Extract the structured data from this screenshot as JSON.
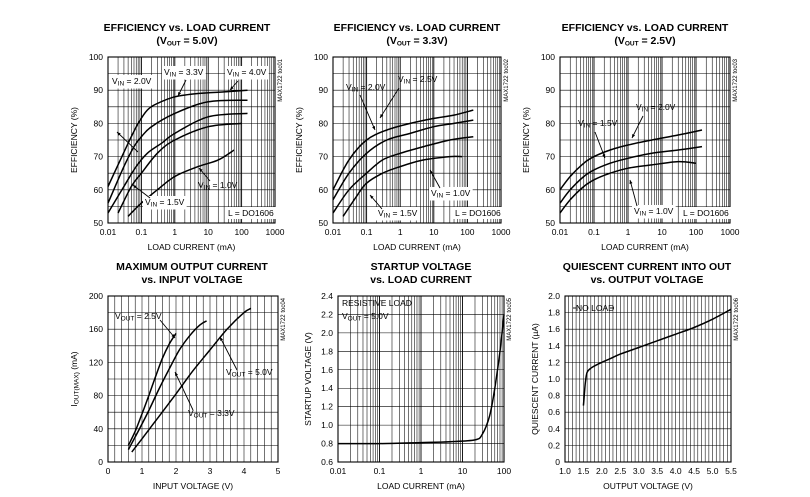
{
  "chart_data": [
    {
      "type": "line",
      "title": "EFFICIENCY vs. LOAD CURRENT",
      "subtitle": "(VOUT = 5.0V)",
      "subtitle_parts": [
        "(V",
        "OUT",
        " = 5.0V)"
      ],
      "xlabel": "LOAD CURRENT (mA)",
      "ylabel": "EFFICIENCY (%)",
      "side_code": "MAX1722 toc01",
      "xscale": "log",
      "xlim": [
        0.01,
        1000
      ],
      "ylim": [
        50,
        100
      ],
      "xticks": [
        0.01,
        0.1,
        1,
        10,
        100,
        1000
      ],
      "xtick_labels": [
        "0.01",
        "0.1",
        "1",
        "10",
        "100",
        "1000"
      ],
      "yticks": [
        50,
        60,
        70,
        80,
        90,
        100
      ],
      "ytick_labels": [
        "50",
        "60",
        "70",
        "80",
        "90",
        "100"
      ],
      "grid": true,
      "series": [
        {
          "x": [
            0.01,
            0.04,
            0.08,
            0.15,
            0.3,
            1,
            5,
            30,
            150
          ],
          "y": [
            61,
            74,
            80,
            84,
            86,
            88,
            89,
            89.5,
            90
          ]
        },
        {
          "x": [
            0.01,
            0.03,
            0.06,
            0.1,
            0.2,
            1,
            10,
            150
          ],
          "y": [
            56,
            67,
            73,
            76,
            79,
            83,
            86.5,
            87
          ]
        },
        {
          "x": [
            0.01,
            0.03,
            0.07,
            0.15,
            0.4,
            1,
            10,
            150
          ],
          "y": [
            53,
            61,
            67,
            71,
            74,
            77,
            82,
            83
          ]
        },
        {
          "x": [
            0.02,
            0.05,
            0.1,
            0.3,
            1,
            10,
            100
          ],
          "y": [
            53,
            61,
            65,
            71,
            75,
            79,
            80
          ]
        },
        {
          "x": [
            0.04,
            0.1,
            0.3,
            1,
            5,
            20,
            60
          ],
          "y": [
            52,
            56,
            60,
            64,
            67,
            69,
            72
          ]
        }
      ],
      "annotations": [
        {
          "parts": [
            "V",
            "IN",
            " = 2.0V"
          ],
          "box": true
        },
        {
          "parts": [
            "V",
            "IN",
            " = 3.3V"
          ],
          "box": true
        },
        {
          "parts": [
            "V",
            "IN",
            " = 4.0V"
          ],
          "box": true
        },
        {
          "parts": [
            "V",
            "IN",
            " = 1.0V"
          ],
          "box": false
        },
        {
          "parts": [
            "V",
            "IN",
            " = 1.5V"
          ],
          "box": true
        },
        {
          "parts": [
            "L = DO1606"
          ],
          "box": true
        }
      ]
    },
    {
      "type": "line",
      "title": "EFFICIENCY vs. LOAD CURRENT",
      "subtitle": "(VOUT = 3.3V)",
      "subtitle_parts": [
        "(V",
        "OUT",
        " = 3.3V)"
      ],
      "xlabel": "LOAD CURRENT (mA)",
      "ylabel": "EFFICIENCY (%)",
      "side_code": "MAX1722 toc02",
      "xscale": "log",
      "xlim": [
        0.01,
        1000
      ],
      "ylim": [
        50,
        100
      ],
      "xticks": [
        0.01,
        0.1,
        1,
        10,
        100,
        1000
      ],
      "xtick_labels": [
        "0.01",
        "0.1",
        "1",
        "10",
        "100",
        "1000"
      ],
      "yticks": [
        50,
        60,
        70,
        80,
        90,
        100
      ],
      "ytick_labels": [
        "50",
        "60",
        "70",
        "80",
        "90",
        "100"
      ],
      "grid": true,
      "series": [
        {
          "x": [
            0.01,
            0.03,
            0.1,
            0.4,
            2,
            10,
            40,
            150
          ],
          "y": [
            60,
            69,
            75,
            78,
            80,
            81.5,
            82.5,
            84
          ]
        },
        {
          "x": [
            0.01,
            0.03,
            0.1,
            0.4,
            2,
            10,
            40,
            150
          ],
          "y": [
            57,
            65,
            71,
            75,
            77,
            79,
            80,
            81
          ]
        },
        {
          "x": [
            0.01,
            0.03,
            0.1,
            0.3,
            1,
            5,
            30,
            150
          ],
          "y": [
            53,
            60,
            65,
            69,
            71,
            73,
            75,
            76
          ]
        },
        {
          "x": [
            0.02,
            0.05,
            0.1,
            0.3,
            1,
            5,
            30,
            70
          ],
          "y": [
            52,
            58,
            62,
            65,
            67,
            69,
            70,
            70
          ]
        }
      ],
      "annotations": [
        {
          "parts": [
            "V",
            "IN",
            " = 2.0V"
          ],
          "box": false
        },
        {
          "parts": [
            "V",
            "IN",
            " = 2.5V"
          ],
          "box": false
        },
        {
          "parts": [
            "V",
            "IN",
            " = 1.0V"
          ],
          "box": true
        },
        {
          "parts": [
            "V",
            "IN",
            " = 1.5V"
          ],
          "box": true
        },
        {
          "parts": [
            "L = DO1606"
          ],
          "box": true
        }
      ]
    },
    {
      "type": "line",
      "title": "EFFICIENCY vs. LOAD CURRENT",
      "subtitle": "(VOUT = 2.5V)",
      "subtitle_parts": [
        "(V",
        "OUT",
        " = 2.5V)"
      ],
      "xlabel": "LOAD CURRENT (mA)",
      "ylabel": "EFFICIENCY (%)",
      "side_code": "MAX1722 toc03",
      "xscale": "log",
      "xlim": [
        0.01,
        1000
      ],
      "ylim": [
        50,
        100
      ],
      "xticks": [
        0.01,
        0.1,
        1,
        10,
        100,
        1000
      ],
      "xtick_labels": [
        "0.01",
        "0.1",
        "1",
        "10",
        "100",
        "1000"
      ],
      "yticks": [
        50,
        60,
        70,
        80,
        90,
        100
      ],
      "ytick_labels": [
        "50",
        "60",
        "70",
        "80",
        "90",
        "100"
      ],
      "grid": true,
      "series": [
        {
          "x": [
            0.01,
            0.02,
            0.05,
            0.1,
            0.3,
            1,
            5,
            30,
            150
          ],
          "y": [
            60,
            64,
            68,
            70,
            72,
            73.5,
            75,
            76.5,
            78
          ]
        },
        {
          "x": [
            0.01,
            0.02,
            0.05,
            0.1,
            0.3,
            1,
            5,
            30,
            150
          ],
          "y": [
            56,
            60,
            64,
            66,
            68,
            69.5,
            71,
            72,
            73
          ]
        },
        {
          "x": [
            0.01,
            0.02,
            0.05,
            0.1,
            0.3,
            1,
            5,
            30,
            100
          ],
          "y": [
            53,
            57,
            61,
            63,
            65,
            66.5,
            67.5,
            68.5,
            68
          ]
        }
      ],
      "annotations": [
        {
          "parts": [
            "V",
            "IN",
            " = 2.0V"
          ],
          "box": false
        },
        {
          "parts": [
            "V",
            "IN",
            " = 1.5V"
          ],
          "box": false
        },
        {
          "parts": [
            "V",
            "IN",
            " = 1.0V"
          ],
          "box": true
        },
        {
          "parts": [
            "L = DO1606"
          ],
          "box": true
        }
      ]
    },
    {
      "type": "line",
      "title": "MAXIMUM OUTPUT CURRENT",
      "subtitle": "vs. INPUT VOLTAGE",
      "subtitle_parts": [
        "vs. INPUT VOLTAGE"
      ],
      "xlabel": "INPUT VOLTAGE (V)",
      "ylabel": "IOUT(MAX) (mA)",
      "ylabel_parts": [
        "I",
        "OUT(MAX)",
        " (mA)"
      ],
      "side_code": "MAX1722 toc04",
      "xscale": "linear",
      "xlim": [
        0,
        5
      ],
      "ylim": [
        0,
        200
      ],
      "xticks": [
        0,
        1,
        2,
        3,
        4,
        5
      ],
      "xtick_labels": [
        "0",
        "1",
        "2",
        "3",
        "4",
        "5"
      ],
      "yticks": [
        0,
        40,
        80,
        120,
        160,
        200
      ],
      "ytick_labels": [
        "0",
        "40",
        "80",
        "120",
        "160",
        "200"
      ],
      "grid": true,
      "series": [
        {
          "x": [
            0.6,
            0.8,
            1.0,
            1.2,
            1.4,
            1.6,
            1.8,
            2.0
          ],
          "y": [
            20,
            37,
            58,
            80,
            103,
            125,
            142,
            155
          ]
        },
        {
          "x": [
            0.6,
            0.9,
            1.2,
            1.5,
            1.8,
            2.1,
            2.4,
            2.7,
            2.9
          ],
          "y": [
            15,
            38,
            62,
            88,
            112,
            135,
            152,
            165,
            170
          ]
        },
        {
          "x": [
            0.7,
            1.0,
            1.5,
            2.0,
            2.5,
            3.0,
            3.5,
            4.0,
            4.2
          ],
          "y": [
            12,
            28,
            55,
            82,
            110,
            135,
            160,
            180,
            185
          ]
        }
      ],
      "annotations": [
        {
          "parts": [
            "V",
            "OUT",
            " = 2.5V"
          ],
          "box": false
        },
        {
          "parts": [
            "V",
            "OUT",
            " = 5.0V"
          ],
          "box": false
        },
        {
          "parts": [
            "V",
            "OUT",
            " = 3.3V"
          ],
          "box": false
        }
      ]
    },
    {
      "type": "line",
      "title": "STARTUP VOLTAGE",
      "subtitle": "vs. LOAD CURRENT",
      "subtitle_parts": [
        "vs. LOAD CURRENT"
      ],
      "xlabel": "LOAD CURRENT (mA)",
      "ylabel": "STARTUP VOLTAGE (V)",
      "side_code": "MAX1722 toc05",
      "xscale": "log",
      "xlim": [
        0.01,
        100
      ],
      "ylim": [
        0.6,
        2.4
      ],
      "xticks": [
        0.01,
        0.1,
        1,
        10,
        100
      ],
      "xtick_labels": [
        "0.01",
        "0.1",
        "1",
        "10",
        "100"
      ],
      "yticks": [
        0.6,
        0.8,
        1.0,
        1.2,
        1.4,
        1.6,
        1.8,
        2.0,
        2.2,
        2.4
      ],
      "ytick_labels": [
        "0.6",
        "0.8",
        "1.0",
        "1.2",
        "1.4",
        "1.6",
        "1.8",
        "2.0",
        "2.2",
        "2.4"
      ],
      "grid": true,
      "series": [
        {
          "x": [
            0.01,
            0.1,
            1,
            5,
            20,
            30,
            45,
            60,
            80,
            100
          ],
          "y": [
            0.8,
            0.8,
            0.81,
            0.82,
            0.84,
            0.9,
            1.1,
            1.4,
            1.8,
            2.2
          ]
        }
      ],
      "annotations": [
        {
          "parts": [
            "RESISTIVE LOAD"
          ],
          "box": false
        },
        {
          "parts": [
            "V",
            "OUT",
            " = 5.0V"
          ],
          "box": false
        }
      ]
    },
    {
      "type": "line",
      "title": "QUIESCENT CURRENT INTO OUT",
      "subtitle": "vs. OUTPUT VOLTAGE",
      "subtitle_parts": [
        "vs. OUTPUT VOLTAGE"
      ],
      "xlabel": "OUTPUT VOLTAGE (V)",
      "ylabel": "QUIESCENT CURRENT (µA)",
      "side_code": "MAX1722 toc06",
      "xscale": "linear",
      "xlim": [
        1.0,
        5.5
      ],
      "ylim": [
        0,
        2.0
      ],
      "xticks": [
        1.0,
        1.5,
        2.0,
        2.5,
        3.0,
        3.5,
        4.0,
        4.5,
        5.0,
        5.5
      ],
      "xtick_labels": [
        "1.0",
        "1.5",
        "2.0",
        "2.5",
        "3.0",
        "3.5",
        "4.0",
        "4.5",
        "5.0",
        "5.5"
      ],
      "yticks": [
        0,
        0.2,
        0.4,
        0.6,
        0.8,
        1.0,
        1.2,
        1.4,
        1.6,
        1.8,
        2.0
      ],
      "ytick_labels": [
        "0",
        "0.2",
        "0.4",
        "0.6",
        "0.8",
        "1.0",
        "1.2",
        "1.4",
        "1.6",
        "1.8",
        "2.0"
      ],
      "grid": true,
      "series": [
        {
          "x": [
            1.5,
            1.55,
            1.6,
            1.7,
            1.9,
            2.2,
            2.5,
            3.0,
            3.5,
            4.0,
            4.5,
            5.0,
            5.5
          ],
          "y": [
            0.68,
            0.95,
            1.08,
            1.13,
            1.18,
            1.24,
            1.3,
            1.38,
            1.46,
            1.54,
            1.62,
            1.72,
            1.84
          ]
        }
      ],
      "annotations": [
        {
          "parts": [
            "NO LOAD"
          ],
          "box": false
        }
      ]
    }
  ]
}
